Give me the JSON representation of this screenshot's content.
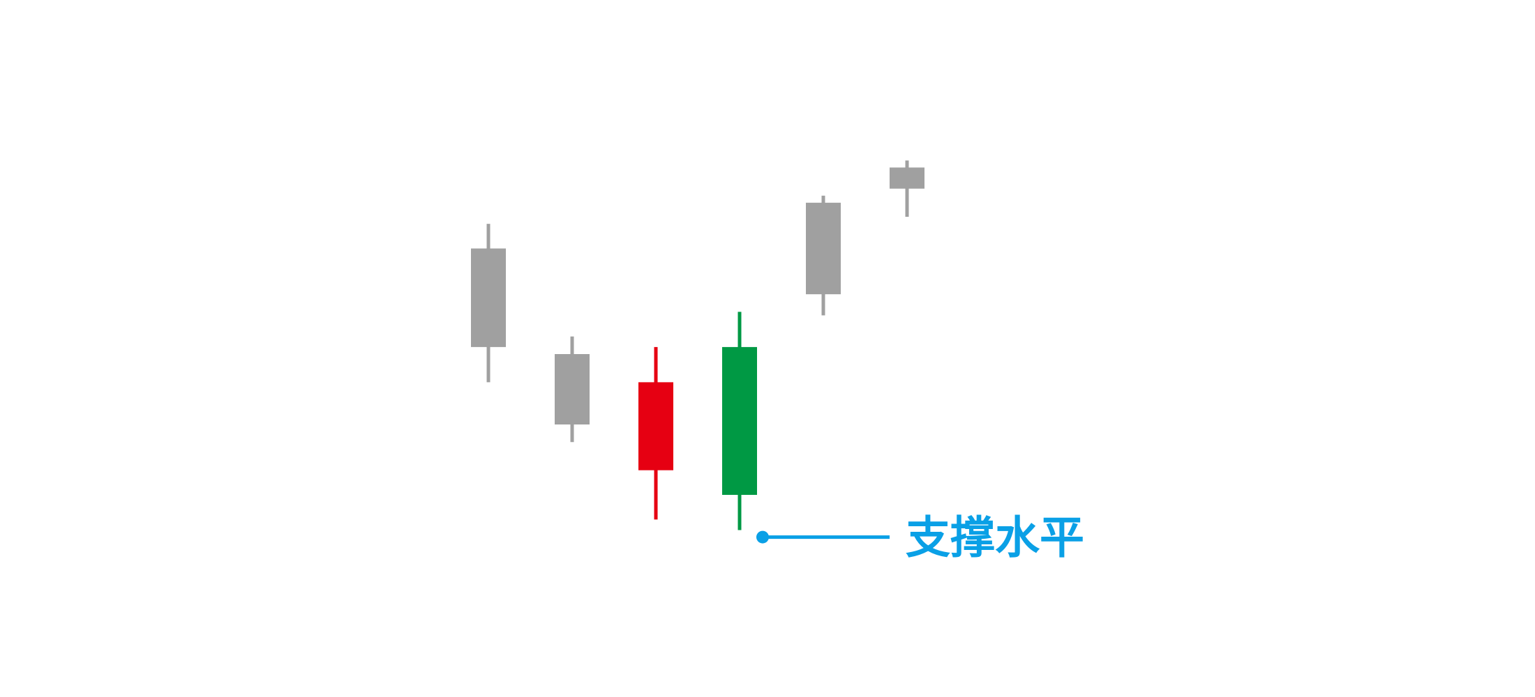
{
  "chart_data": {
    "type": "candlestick",
    "title": "",
    "xlabel": "",
    "ylabel": "",
    "grid": false,
    "legend": "none",
    "axes_visible": false,
    "candles": [
      {
        "open": 0.7,
        "high": 0.77,
        "low": 0.32,
        "close": 0.42,
        "color": "#a0a0a0"
      },
      {
        "open": 0.4,
        "high": 0.45,
        "low": 0.15,
        "close": 0.2,
        "color": "#a0a0a0"
      },
      {
        "open": 0.32,
        "high": 0.42,
        "low": -0.07,
        "close": 0.07,
        "color": "#e60012"
      },
      {
        "open": 0.0,
        "high": 0.52,
        "low": -0.1,
        "close": 0.42,
        "color": "#009944"
      },
      {
        "open": 0.57,
        "high": 0.85,
        "low": 0.51,
        "close": 0.83,
        "color": "#a0a0a0"
      },
      {
        "open": 0.87,
        "high": 0.95,
        "low": 0.79,
        "close": 0.93,
        "color": "#a0a0a0"
      }
    ],
    "annotations": [
      {
        "text": "支撑水平",
        "level": -0.12,
        "color": "#0aa0e6"
      }
    ]
  }
}
